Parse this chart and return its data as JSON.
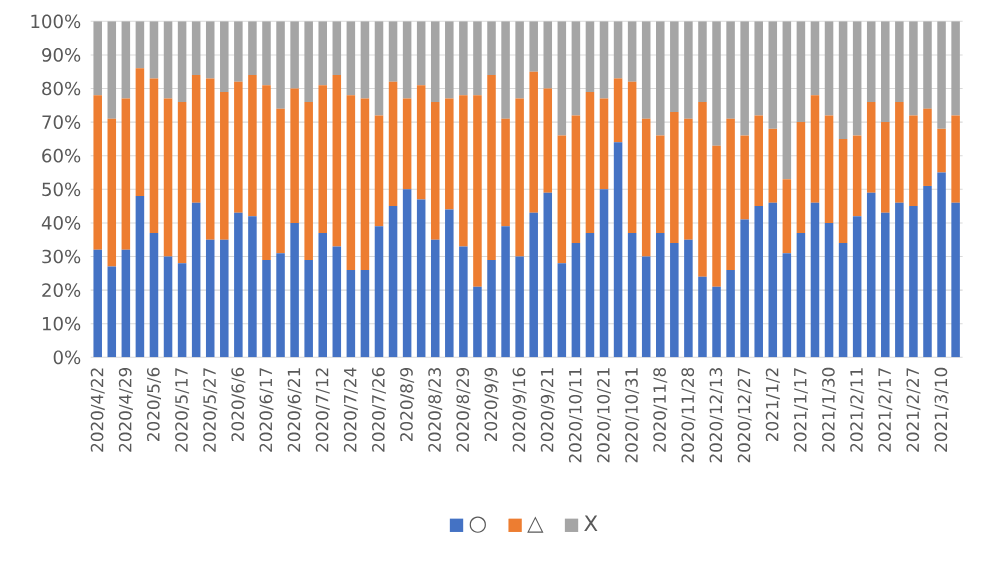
{
  "chart_data": {
    "type": "bar",
    "stacked": true,
    "categories": [
      "2020/4/22",
      null,
      "2020/4/29",
      null,
      "2020/5/6",
      null,
      "2020/5/17",
      null,
      "2020/5/27",
      null,
      "2020/6/6",
      null,
      "2020/6/17",
      null,
      "2020/6/21",
      null,
      "2020/7/12",
      null,
      "2020/7/24",
      null,
      "2020/7/26",
      null,
      "2020/8/9",
      null,
      "2020/8/23",
      null,
      "2020/8/29",
      null,
      "2020/9/9",
      null,
      "2020/9/16",
      null,
      "2020/9/21",
      null,
      "2020/10/11",
      null,
      "2020/10/21",
      null,
      "2020/10/31",
      null,
      "2020/11/8",
      null,
      "2020/11/28",
      null,
      "2020/12/13",
      null,
      "2020/12/27",
      null,
      "2021/1/2",
      null,
      "2021/1/17",
      null,
      "2021/1/30",
      null,
      "2021/2/11",
      null,
      "2021/2/17",
      null,
      "2021/2/27",
      null,
      "2021/3/10",
      null
    ],
    "series": [
      {
        "name": "○",
        "color": "#4472c4",
        "values": [
          32,
          27,
          32,
          48,
          37,
          30,
          28,
          46,
          35,
          35,
          43,
          42,
          29,
          31,
          40,
          29,
          37,
          33,
          26,
          26,
          39,
          45,
          50,
          47,
          35,
          44,
          33,
          21,
          29,
          39,
          30,
          43,
          49,
          28,
          34,
          37,
          50,
          64,
          37,
          30,
          37,
          34,
          35,
          24,
          21,
          26,
          41,
          45,
          46,
          31,
          37,
          46,
          40,
          34,
          42,
          49,
          43,
          46,
          45,
          51,
          55,
          46
        ]
      },
      {
        "name": "△",
        "color": "#ed7d31",
        "values": [
          46,
          44,
          45,
          38,
          46,
          47,
          48,
          38,
          48,
          44,
          39,
          42,
          52,
          43,
          40,
          47,
          44,
          51,
          52,
          51,
          33,
          37,
          27,
          34,
          41,
          33,
          45,
          57,
          55,
          32,
          47,
          42,
          31,
          38,
          38,
          42,
          27,
          19,
          45,
          41,
          29,
          39,
          36,
          52,
          42,
          45,
          25,
          27,
          22,
          22,
          33,
          32,
          32,
          31,
          24,
          27,
          27,
          30,
          27,
          23,
          13,
          26
        ]
      },
      {
        "name": "X",
        "color": "#a5a5a5",
        "values": [
          22,
          29,
          23,
          14,
          17,
          23,
          24,
          16,
          17,
          21,
          18,
          16,
          19,
          26,
          20,
          24,
          19,
          16,
          22,
          23,
          28,
          18,
          23,
          19,
          24,
          23,
          22,
          22,
          16,
          29,
          23,
          15,
          20,
          34,
          28,
          21,
          23,
          17,
          18,
          29,
          34,
          27,
          29,
          24,
          37,
          29,
          34,
          28,
          32,
          47,
          30,
          22,
          28,
          35,
          34,
          24,
          30,
          24,
          28,
          26,
          32,
          28
        ]
      }
    ],
    "ylim": [
      0,
      100
    ],
    "yticks": [
      {
        "value": 0,
        "label": "0%"
      },
      {
        "value": 10,
        "label": "10%"
      },
      {
        "value": 20,
        "label": "20%"
      },
      {
        "value": 30,
        "label": "30%"
      },
      {
        "value": 40,
        "label": "40%"
      },
      {
        "value": 50,
        "label": "50%"
      },
      {
        "value": 60,
        "label": "60%"
      },
      {
        "value": 70,
        "label": "70%"
      },
      {
        "value": 80,
        "label": "80%"
      },
      {
        "value": 90,
        "label": "90%"
      },
      {
        "value": 100,
        "label": "100%"
      }
    ],
    "grid": "y",
    "legend": "bottom"
  }
}
